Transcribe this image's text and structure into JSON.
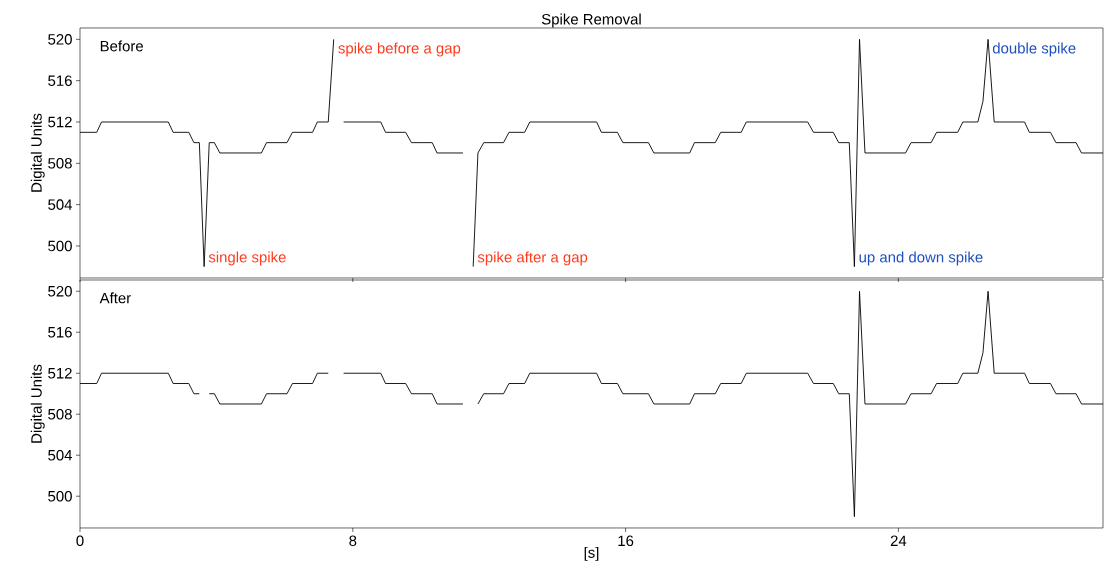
{
  "chart_data": [
    {
      "type": "line",
      "title": "Spike Removal",
      "ylabel": "Digital Units",
      "color": "#000000",
      "x": [
        0,
        0.49,
        0.63,
        2.59,
        2.73,
        3.19,
        3.34,
        3.5,
        3.64,
        3.79,
        3.94,
        4.1,
        5.32,
        5.47,
        6.07,
        6.23,
        6.82,
        6.96,
        7.28,
        7.44,
        7.58,
        7.73,
        8.82,
        8.96,
        9.55,
        9.72,
        10.33,
        10.47,
        11.23,
        11.38,
        11.53,
        11.67,
        11.84,
        12.42,
        12.58,
        13.04,
        13.19,
        15.15,
        15.29,
        15.76,
        15.92,
        16.67,
        16.83,
        17.88,
        18.02,
        18.63,
        18.79,
        19.39,
        19.54,
        21.34,
        21.51,
        22.09,
        22.25,
        22.56,
        22.71,
        22.86,
        23.02,
        24.21,
        24.37,
        24.96,
        25.12,
        25.74,
        25.89,
        26.33,
        26.48,
        26.63,
        26.81,
        27.7,
        27.84,
        28.46,
        28.62,
        29.21,
        29.37,
        30
      ],
      "values": [
        511,
        511,
        512,
        512,
        511,
        511,
        510,
        510,
        498,
        510,
        510,
        509,
        509,
        510,
        510,
        511,
        511,
        512,
        512,
        520,
        null,
        512,
        512,
        511,
        511,
        510,
        510,
        509,
        509,
        null,
        498,
        509,
        510,
        510,
        511,
        511,
        512,
        512,
        511,
        511,
        510,
        510,
        509,
        509,
        510,
        510,
        511,
        511,
        512,
        512,
        511,
        511,
        510,
        510,
        498,
        520,
        509,
        509,
        510,
        510,
        511,
        511,
        512,
        512,
        514,
        520,
        512,
        512,
        511,
        511,
        510,
        510,
        509,
        509
      ],
      "annotations": [
        "Before",
        {
          "text": "single spike",
          "x": 3.64,
          "y": 498
        },
        {
          "text": "spike before a gap",
          "x": 7.44,
          "y": 520
        },
        {
          "text": "spike after a gap",
          "x": 11.53,
          "y": 498
        },
        {
          "text": "up and down spike",
          "x": 22.71,
          "y": 498
        },
        {
          "text": "double spike",
          "x": 26.63,
          "y": 520
        }
      ],
      "xlim": [
        0,
        30
      ],
      "ylim": [
        496.9,
        521.1
      ],
      "xticks": [
        0,
        8,
        16,
        24
      ],
      "yticks": [
        500,
        504,
        508,
        512,
        516,
        520
      ],
      "tick_labels": "y"
    },
    {
      "type": "line",
      "ylabel": "Digital Units",
      "xlabel": "[s]",
      "color": "#000000",
      "x": [
        0,
        0.49,
        0.63,
        2.59,
        2.73,
        3.19,
        3.34,
        3.5,
        3.64,
        3.79,
        3.94,
        4.1,
        5.32,
        5.47,
        6.07,
        6.23,
        6.82,
        6.96,
        7.28,
        7.44,
        7.58,
        7.73,
        8.82,
        8.96,
        9.55,
        9.72,
        10.33,
        10.47,
        11.23,
        11.38,
        11.53,
        11.67,
        11.84,
        12.42,
        12.58,
        13.04,
        13.19,
        15.15,
        15.29,
        15.76,
        15.92,
        16.67,
        16.83,
        17.88,
        18.02,
        18.63,
        18.79,
        19.39,
        19.54,
        21.34,
        21.51,
        22.09,
        22.25,
        22.56,
        22.71,
        22.86,
        23.02,
        24.21,
        24.37,
        24.96,
        25.12,
        25.74,
        25.89,
        26.33,
        26.48,
        26.63,
        26.81,
        27.7,
        27.84,
        28.46,
        28.62,
        29.21,
        29.37,
        30
      ],
      "values": [
        511,
        511,
        512,
        512,
        511,
        511,
        510,
        510,
        null,
        510,
        510,
        509,
        509,
        510,
        510,
        511,
        511,
        512,
        512,
        null,
        null,
        512,
        512,
        511,
        511,
        510,
        510,
        509,
        509,
        null,
        null,
        509,
        510,
        510,
        511,
        511,
        512,
        512,
        511,
        511,
        510,
        510,
        509,
        509,
        510,
        510,
        511,
        511,
        512,
        512,
        511,
        511,
        510,
        510,
        498,
        520,
        509,
        509,
        510,
        510,
        511,
        511,
        512,
        512,
        514,
        520,
        512,
        512,
        511,
        511,
        510,
        510,
        509,
        509
      ],
      "annotations": [
        "After"
      ],
      "xlim": [
        0,
        30
      ],
      "ylim": [
        496.9,
        521.1
      ],
      "xticks": [
        0,
        8,
        16,
        24
      ],
      "yticks": [
        500,
        504,
        508,
        512,
        516,
        520
      ]
    }
  ]
}
